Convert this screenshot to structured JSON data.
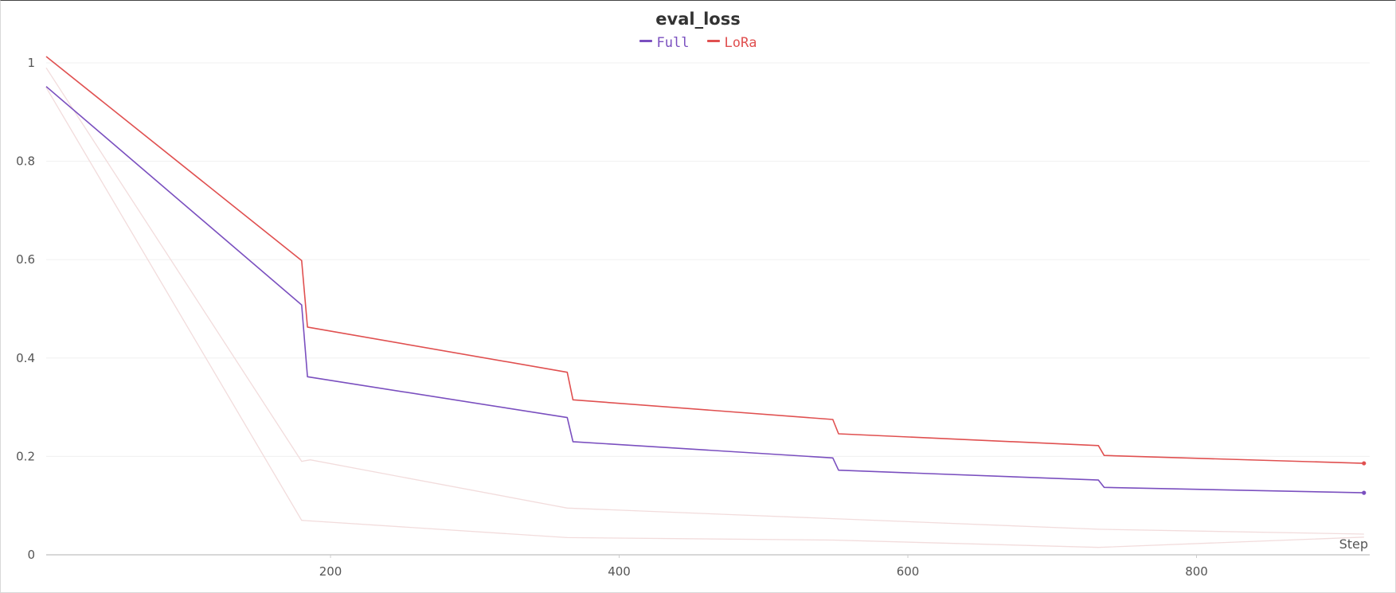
{
  "chart_data": {
    "type": "line",
    "title": "eval_loss",
    "xlabel": "Step",
    "ylabel": "",
    "xlim": [
      3,
      920
    ],
    "ylim": [
      0,
      1.0
    ],
    "x_ticks": [
      200,
      400,
      600,
      800
    ],
    "y_ticks": [
      0,
      0.2,
      0.4,
      0.6,
      0.8,
      1
    ],
    "grid": true,
    "legend": "top-center",
    "series": [
      {
        "name": "Full",
        "color": "#7a4fbf",
        "x": [
          3,
          180,
          184,
          364,
          368,
          548,
          552,
          732,
          736,
          916
        ],
        "y": [
          0.952,
          0.508,
          0.362,
          0.279,
          0.23,
          0.197,
          0.172,
          0.152,
          0.137,
          0.126
        ]
      },
      {
        "name": "LoRa",
        "color": "#e05050",
        "x": [
          3,
          180,
          184,
          364,
          368,
          548,
          552,
          732,
          736,
          916
        ],
        "y": [
          1.013,
          0.598,
          0.463,
          0.371,
          0.315,
          0.275,
          0.246,
          0.222,
          0.202,
          0.186
        ]
      }
    ],
    "faint_lines": [
      {
        "color": "#f2dcdc",
        "x": [
          3,
          180,
          186,
          364,
          732,
          916
        ],
        "y": [
          0.99,
          0.19,
          0.193,
          0.095,
          0.052,
          0.042
        ]
      },
      {
        "color": "#f2dcdc",
        "x": [
          3,
          180,
          364,
          548,
          732,
          916
        ],
        "y": [
          0.95,
          0.07,
          0.035,
          0.03,
          0.015,
          0.036
        ]
      }
    ]
  }
}
